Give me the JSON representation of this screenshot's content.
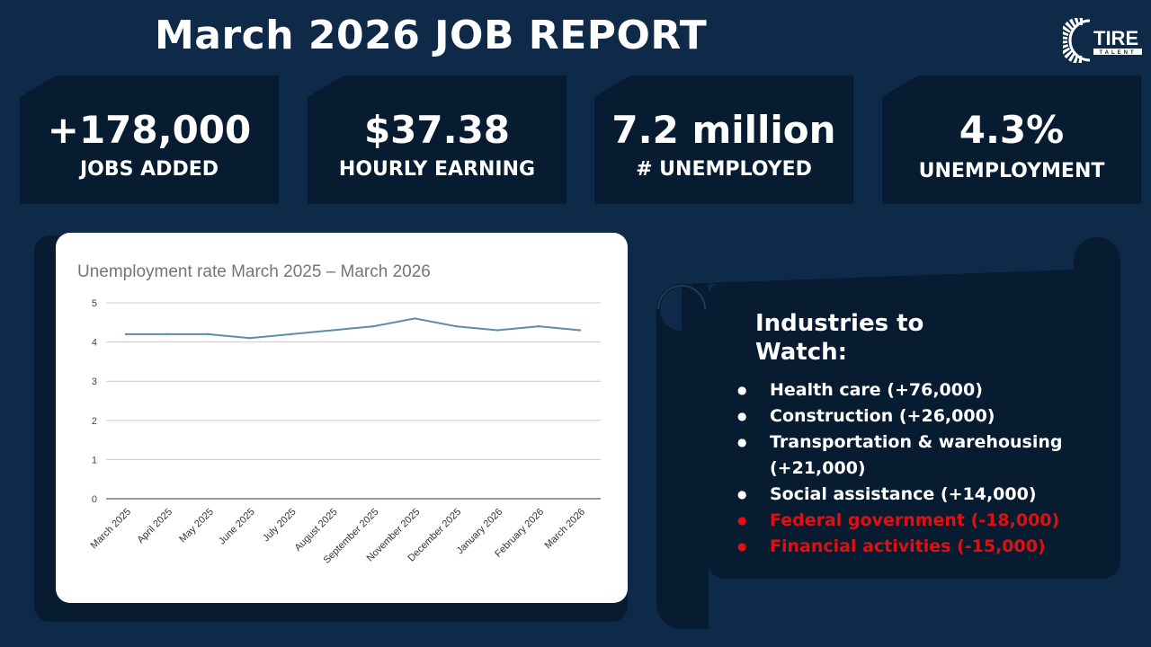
{
  "header": {
    "title": "March 2026 JOB REPORT",
    "logo_text": "TIRE TALENT"
  },
  "stats": [
    {
      "value": "+178,000",
      "label": "JOBS ADDED"
    },
    {
      "value": "$37.38",
      "label": "HOURLY EARNING"
    },
    {
      "value": "7.2 million",
      "label": "# UNEMPLOYED"
    },
    {
      "value": "4.3%",
      "label": "UNEMPLOYMENT"
    }
  ],
  "chart_data": {
    "type": "line",
    "title": "Unemployment rate March 2025 – March 2026",
    "categories": [
      "March 2025",
      "April 2025",
      "May 2025",
      "June 2025",
      "July 2025",
      "August 2025",
      "September 2025",
      "November 2025",
      "December 2025",
      "January 2026",
      "February 2026",
      "March 2026"
    ],
    "values": [
      4.2,
      4.2,
      4.2,
      4.1,
      4.2,
      4.3,
      4.4,
      4.6,
      4.4,
      4.3,
      4.4,
      4.3
    ],
    "ylim": [
      0,
      5
    ],
    "yticks": [
      "0",
      "1",
      "2",
      "3",
      "4",
      "5"
    ],
    "grid": true,
    "line_color": "#5b8fa3"
  },
  "industries": {
    "title_line1": "Industries to",
    "title_line2": "Watch:",
    "items": [
      {
        "text": "Health care (+76,000)",
        "negative": false
      },
      {
        "text": "Construction (+26,000)",
        "negative": false
      },
      {
        "text": "Transportation & warehousing (+21,000)",
        "negative": false
      },
      {
        "text": "Social assistance (+14,000)",
        "negative": false
      },
      {
        "text": "Federal government (-18,000)",
        "negative": true
      },
      {
        "text": "Financial activities (-15,000)",
        "negative": true
      }
    ],
    "negative_color": "#e01010"
  }
}
